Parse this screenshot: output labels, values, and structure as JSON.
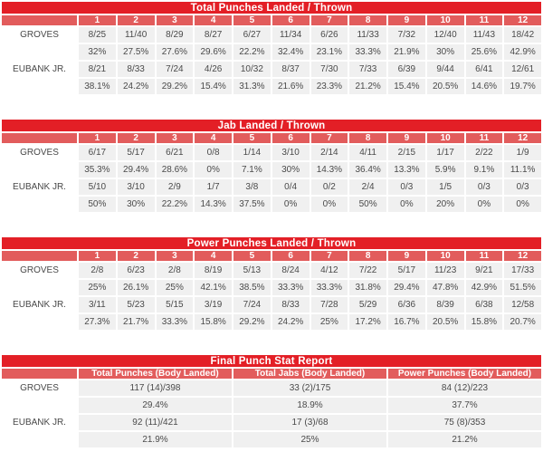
{
  "colors": {
    "title_bar": "#e31f26",
    "round_header": "#e25c5c",
    "cell_bg": "#f0f0f0",
    "cell_text": "#4a4a4a",
    "header_text": "#ffffff"
  },
  "chart_data": [
    {
      "type": "table",
      "title": "Total Punches Landed / Thrown",
      "columns": [
        "1",
        "2",
        "3",
        "4",
        "5",
        "6",
        "7",
        "8",
        "9",
        "10",
        "11",
        "12"
      ],
      "rows": [
        {
          "name": "GROVES",
          "values": [
            "8/25",
            "11/40",
            "8/29",
            "8/27",
            "6/27",
            "11/34",
            "6/26",
            "11/33",
            "7/32",
            "12/40",
            "11/43",
            "18/42"
          ],
          "percents": [
            "32%",
            "27.5%",
            "27.6%",
            "29.6%",
            "22.2%",
            "32.4%",
            "23.1%",
            "33.3%",
            "21.9%",
            "30%",
            "25.6%",
            "42.9%"
          ]
        },
        {
          "name": "EUBANK JR.",
          "values": [
            "8/21",
            "8/33",
            "7/24",
            "4/26",
            "10/32",
            "8/37",
            "7/30",
            "7/33",
            "6/39",
            "9/44",
            "6/41",
            "12/61"
          ],
          "percents": [
            "38.1%",
            "24.2%",
            "29.2%",
            "15.4%",
            "31.3%",
            "21.6%",
            "23.3%",
            "21.2%",
            "15.4%",
            "20.5%",
            "14.6%",
            "19.7%"
          ]
        }
      ]
    },
    {
      "type": "table",
      "title": "Jab Landed / Thrown",
      "columns": [
        "1",
        "2",
        "3",
        "4",
        "5",
        "6",
        "7",
        "8",
        "9",
        "10",
        "11",
        "12"
      ],
      "rows": [
        {
          "name": "GROVES",
          "values": [
            "6/17",
            "5/17",
            "6/21",
            "0/8",
            "1/14",
            "3/10",
            "2/14",
            "4/11",
            "2/15",
            "1/17",
            "2/22",
            "1/9"
          ],
          "percents": [
            "35.3%",
            "29.4%",
            "28.6%",
            "0%",
            "7.1%",
            "30%",
            "14.3%",
            "36.4%",
            "13.3%",
            "5.9%",
            "9.1%",
            "11.1%"
          ]
        },
        {
          "name": "EUBANK JR.",
          "values": [
            "5/10",
            "3/10",
            "2/9",
            "1/7",
            "3/8",
            "0/4",
            "0/2",
            "2/4",
            "0/3",
            "1/5",
            "0/3",
            "0/3"
          ],
          "percents": [
            "50%",
            "30%",
            "22.2%",
            "14.3%",
            "37.5%",
            "0%",
            "0%",
            "50%",
            "0%",
            "20%",
            "0%",
            "0%"
          ]
        }
      ]
    },
    {
      "type": "table",
      "title": "Power Punches Landed / Thrown",
      "columns": [
        "1",
        "2",
        "3",
        "4",
        "5",
        "6",
        "7",
        "8",
        "9",
        "10",
        "11",
        "12"
      ],
      "rows": [
        {
          "name": "GROVES",
          "values": [
            "2/8",
            "6/23",
            "2/8",
            "8/19",
            "5/13",
            "8/24",
            "4/12",
            "7/22",
            "5/17",
            "11/23",
            "9/21",
            "17/33"
          ],
          "percents": [
            "25%",
            "26.1%",
            "25%",
            "42.1%",
            "38.5%",
            "33.3%",
            "33.3%",
            "31.8%",
            "29.4%",
            "47.8%",
            "42.9%",
            "51.5%"
          ]
        },
        {
          "name": "EUBANK JR.",
          "values": [
            "3/11",
            "5/23",
            "5/15",
            "3/19",
            "7/24",
            "8/33",
            "7/28",
            "5/29",
            "6/36",
            "8/39",
            "6/38",
            "12/58"
          ],
          "percents": [
            "27.3%",
            "21.7%",
            "33.3%",
            "15.8%",
            "29.2%",
            "24.2%",
            "25%",
            "17.2%",
            "16.7%",
            "20.5%",
            "15.8%",
            "20.7%"
          ]
        }
      ]
    },
    {
      "type": "table",
      "title": "Final Punch Stat Report",
      "columns": [
        "Total Punches (Body Landed)",
        "Total Jabs (Body Landed)",
        "Power Punches (Body Landed)"
      ],
      "rows": [
        {
          "name": "GROVES",
          "values": [
            "117 (14)/398",
            "33 (2)/175",
            "84 (12)/223"
          ],
          "percents": [
            "29.4%",
            "18.9%",
            "37.7%"
          ]
        },
        {
          "name": "EUBANK JR.",
          "values": [
            "92 (11)/421",
            "17 (3)/68",
            "75 (8)/353"
          ],
          "percents": [
            "21.9%",
            "25%",
            "21.2%"
          ]
        }
      ]
    }
  ]
}
